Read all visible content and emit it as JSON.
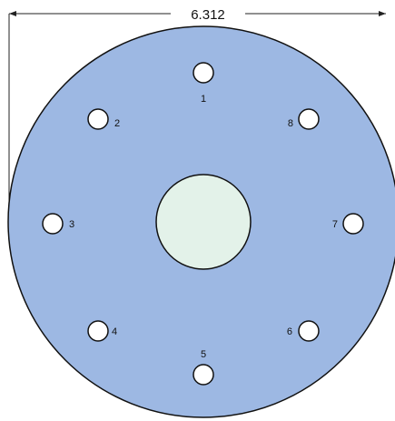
{
  "dimension": {
    "label": "6.312"
  },
  "colors": {
    "plate_fill": "#9db8e3",
    "center_hole_fill": "#e3f2e9",
    "bolt_hole_fill": "#ffffff",
    "outline": "#111111"
  },
  "holes": [
    {
      "label": "1"
    },
    {
      "label": "2"
    },
    {
      "label": "3"
    },
    {
      "label": "4"
    },
    {
      "label": "5"
    },
    {
      "label": "6"
    },
    {
      "label": "7"
    },
    {
      "label": "8"
    }
  ]
}
